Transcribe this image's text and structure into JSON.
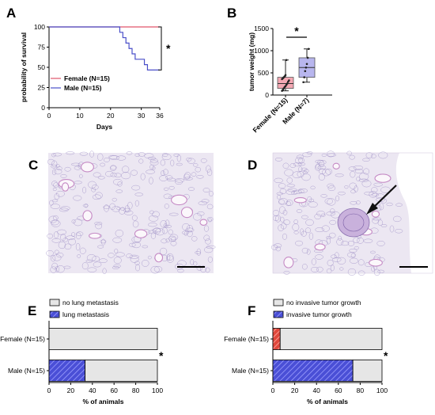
{
  "panels": {
    "a": "A",
    "b": "B",
    "c": "C",
    "d": "D",
    "e": "E",
    "f": "F"
  },
  "colors": {
    "female": "#e0556a",
    "male": "#4a4fc9",
    "box_female": "#f4a8b3",
    "box_male": "#b8b6ee",
    "bar_empty": "#e6e6e6",
    "hatch_blue": "#4040d0",
    "hatch_red": "#e04040"
  },
  "chart_data": [
    {
      "panel": "A",
      "type": "line",
      "subtype": "kaplan-meier",
      "xlabel": "Days",
      "ylabel": "probability of survival",
      "xlim": [
        0,
        36
      ],
      "ylim": [
        0,
        100
      ],
      "xticks": [
        0,
        10,
        20,
        30,
        36
      ],
      "yticks": [
        0,
        25,
        50,
        75,
        100
      ],
      "significance": "*",
      "legend_position": "bottom-left",
      "series": [
        {
          "name": "Female (N=15)",
          "color_key": "female",
          "steps": [
            [
              0,
              100
            ],
            [
              36,
              100
            ]
          ]
        },
        {
          "name": "Male (N=15)",
          "color_key": "male",
          "steps": [
            [
              0,
              100
            ],
            [
              23,
              100
            ],
            [
              23,
              93.3
            ],
            [
              24,
              93.3
            ],
            [
              24,
              86.7
            ],
            [
              25,
              86.7
            ],
            [
              25,
              80
            ],
            [
              26,
              80
            ],
            [
              26,
              73.3
            ],
            [
              27,
              73.3
            ],
            [
              27,
              66.7
            ],
            [
              28,
              66.7
            ],
            [
              28,
              60
            ],
            [
              31,
              60
            ],
            [
              31,
              53.3
            ],
            [
              32,
              53.3
            ],
            [
              32,
              46.7
            ],
            [
              36,
              46.7
            ]
          ]
        }
      ]
    },
    {
      "panel": "B",
      "type": "box",
      "ylabel": "tumor weight (mg)",
      "ylim": [
        0,
        1500
      ],
      "yticks": [
        0,
        500,
        1000,
        1500
      ],
      "categories": [
        "Female (N=15)",
        "Male (N=7)"
      ],
      "significance": "*",
      "boxes": [
        {
          "name": "Female (N=15)",
          "color_key": "box_female",
          "min": 95,
          "q1": 150,
          "median": 260,
          "q3": 400,
          "max": 790,
          "points": [
            95,
            120,
            150,
            180,
            200,
            230,
            260,
            300,
            330,
            360,
            380,
            400,
            420,
            450,
            790
          ]
        },
        {
          "name": "Male (N=7)",
          "color_key": "box_male",
          "min": 290,
          "q1": 400,
          "median": 620,
          "q3": 840,
          "max": 1040,
          "points": [
            290,
            400,
            540,
            620,
            700,
            840,
            1040
          ]
        }
      ]
    },
    {
      "panel": "E",
      "type": "bar",
      "orientation": "horizontal-stacked",
      "xlabel": "% of animals",
      "xlim": [
        0,
        100
      ],
      "xticks": [
        0,
        20,
        40,
        60,
        80,
        100
      ],
      "categories": [
        "Female (N=15)",
        "Male (N=15)"
      ],
      "significance": "*",
      "legend_position": "top",
      "series": [
        {
          "name": "no lung metastasis",
          "color_key": "bar_empty",
          "values": [
            100,
            66.7
          ]
        },
        {
          "name": "lung metastasis",
          "color_key": "hatch_blue",
          "values": [
            0,
            33.3
          ]
        }
      ]
    },
    {
      "panel": "F",
      "type": "bar",
      "orientation": "horizontal-stacked",
      "xlabel": "% of animals",
      "xlim": [
        0,
        100
      ],
      "xticks": [
        0,
        20,
        40,
        60,
        80,
        100
      ],
      "categories": [
        "Female (N=15)",
        "Male (N=15)"
      ],
      "significance": "*",
      "legend_position": "top",
      "series": [
        {
          "name": "no invasive tumor growth",
          "color_key": "bar_empty",
          "values": [
            93.3,
            26.7
          ]
        },
        {
          "name": "invasive tumor growth",
          "color_key": [
            "hatch_red",
            "hatch_blue"
          ],
          "values": [
            6.7,
            73.3
          ]
        }
      ]
    }
  ]
}
